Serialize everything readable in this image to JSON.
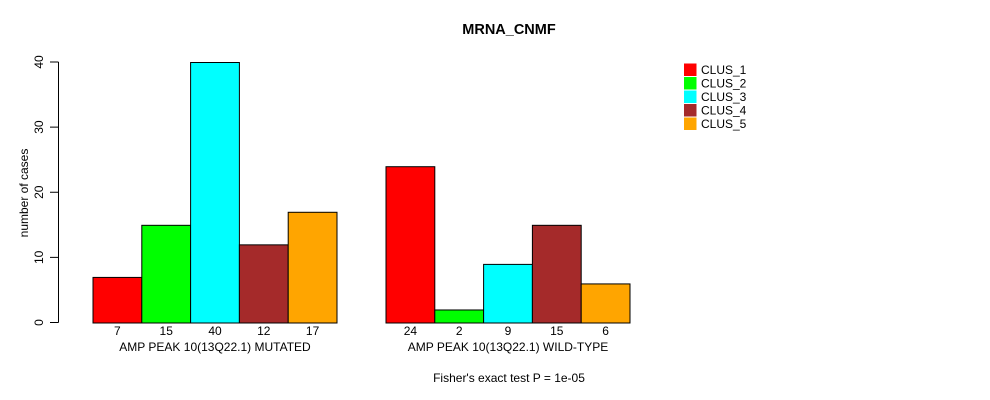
{
  "chart_data": {
    "type": "bar",
    "title": "MRNA_CNMF",
    "ylabel": "number of cases",
    "xlabel": "",
    "ylim": [
      0,
      40
    ],
    "yticks": [
      0,
      10,
      20,
      30,
      40
    ],
    "grid": false,
    "legend_position": "top-right",
    "value_labels_shown": true,
    "categories": [
      "AMP PEAK 10(13Q22.1) MUTATED",
      "AMP PEAK 10(13Q22.1) WILD-TYPE"
    ],
    "series": [
      {
        "name": "CLUS_1",
        "color": "#FF0000",
        "values": [
          7,
          24
        ]
      },
      {
        "name": "CLUS_2",
        "color": "#00FF00",
        "values": [
          15,
          2
        ]
      },
      {
        "name": "CLUS_3",
        "color": "#00FFFF",
        "values": [
          40,
          9
        ]
      },
      {
        "name": "CLUS_4",
        "color": "#A52A2A",
        "values": [
          12,
          15
        ]
      },
      {
        "name": "CLUS_5",
        "color": "#FFA500",
        "values": [
          17,
          6
        ]
      }
    ],
    "note": "Fisher's exact test P = 1e-05",
    "bar_outline_color": "#000000",
    "text_color": "#000000",
    "background_color": "#FFFFFF"
  }
}
